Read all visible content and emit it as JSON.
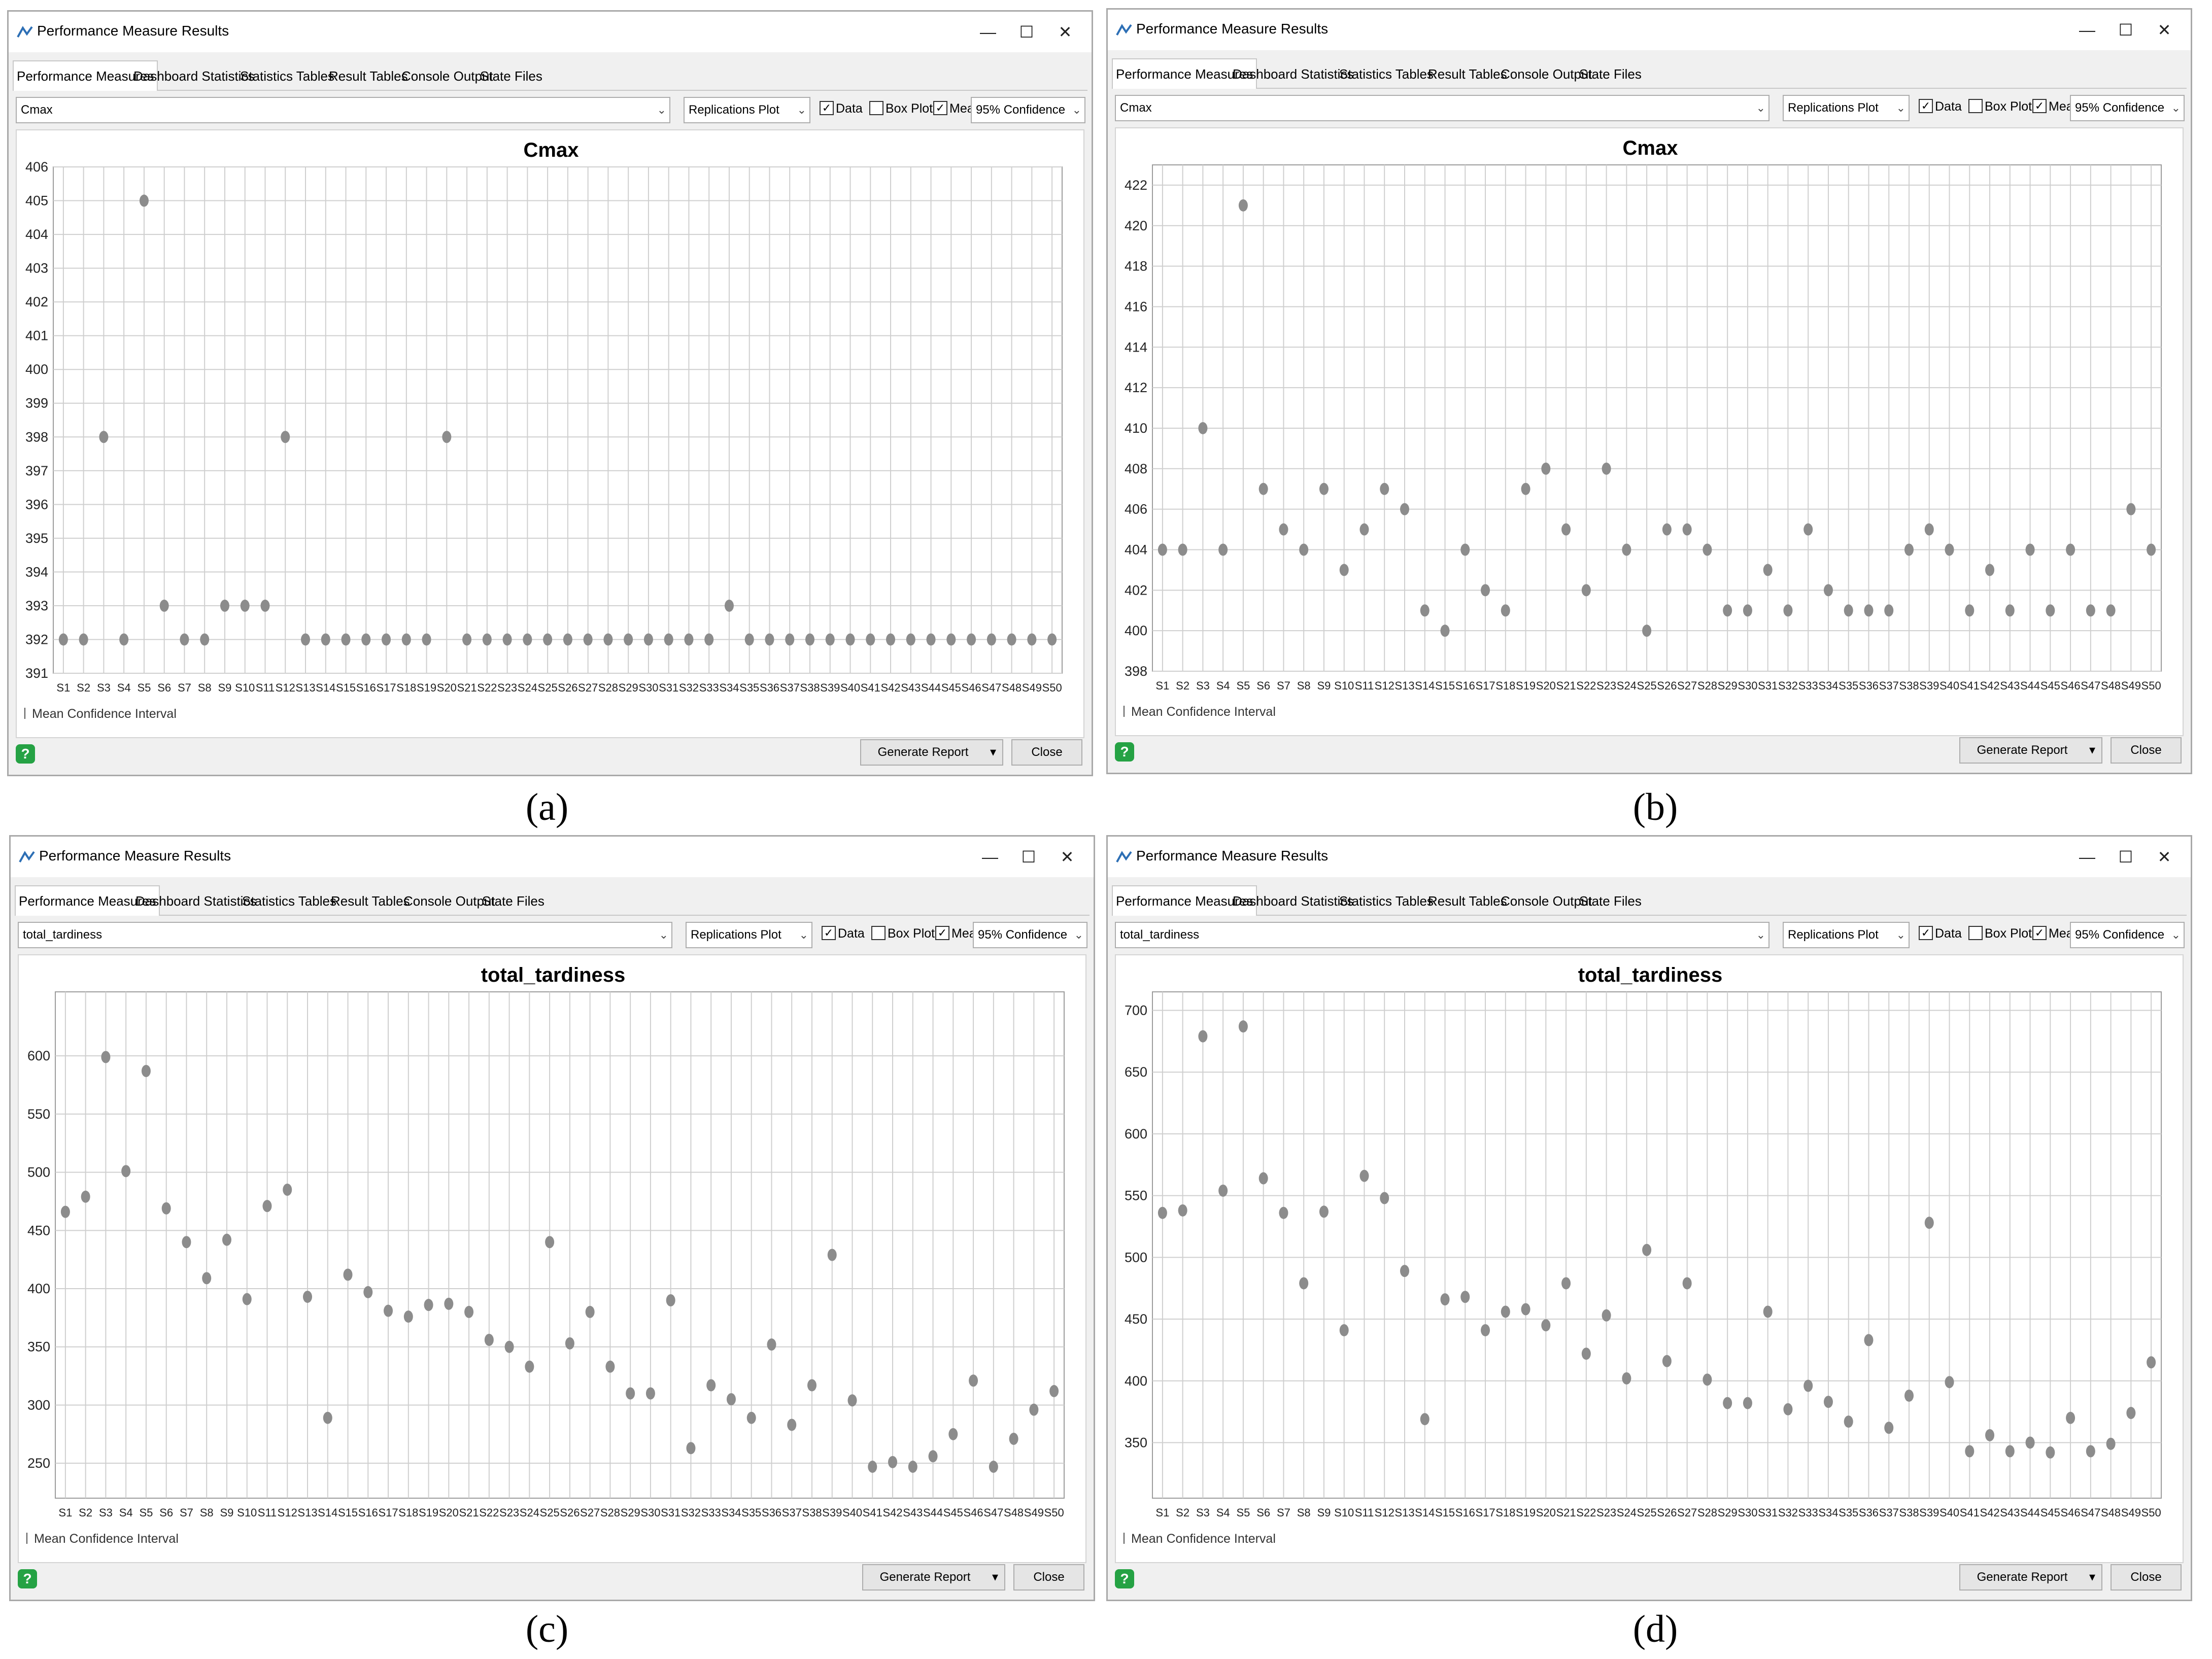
{
  "window_title": "Performance Measure Results",
  "tabs": [
    "Performance Measures",
    "Dashboard Statistics",
    "Statistics Tables",
    "Result Tables",
    "Console Output",
    "State Files"
  ],
  "plot_type": "Replications Plot",
  "data_label": "Data",
  "boxplot_label": "Box Plot",
  "mean_label": "Mean",
  "confidence": "95% Confidence",
  "legend_text": "Mean Confidence Interval",
  "generate_report": "Generate Report",
  "close_label": "Close",
  "help_glyph": "?",
  "colors": {
    "point": "#8c8c8c",
    "grid": "#cfcfcf",
    "help": "#25a244"
  },
  "panels": [
    {
      "id": "a",
      "caption": "(a)",
      "measure": "Cmax"
    },
    {
      "id": "b",
      "caption": "(b)",
      "measure": "Cmax"
    },
    {
      "id": "c",
      "caption": "(c)",
      "measure": "total_tardiness"
    },
    {
      "id": "d",
      "caption": "(d)",
      "measure": "total_tardiness"
    }
  ],
  "chart_data": [
    {
      "type": "scatter",
      "title": "Cmax",
      "xlabel": "",
      "ylabel": "",
      "ylim": [
        391,
        406
      ],
      "yticks": [
        391,
        392,
        393,
        394,
        395,
        396,
        397,
        398,
        399,
        400,
        401,
        402,
        403,
        404,
        405,
        406
      ],
      "categories": [
        "S1",
        "S2",
        "S3",
        "S4",
        "S5",
        "S6",
        "S7",
        "S8",
        "S9",
        "S10",
        "S11",
        "S12",
        "S13",
        "S14",
        "S15",
        "S16",
        "S17",
        "S18",
        "S19",
        "S20",
        "S21",
        "S22",
        "S23",
        "S24",
        "S25",
        "S26",
        "S27",
        "S28",
        "S29",
        "S30",
        "S31",
        "S32",
        "S33",
        "S34",
        "S35",
        "S36",
        "S37",
        "S38",
        "S39",
        "S40",
        "S41",
        "S42",
        "S43",
        "S44",
        "S45",
        "S46",
        "S47",
        "S48",
        "S49",
        "S50"
      ],
      "values": [
        392,
        392,
        398,
        392,
        405,
        393,
        392,
        392,
        393,
        393,
        393,
        398,
        392,
        392,
        392,
        392,
        392,
        392,
        392,
        398,
        392,
        392,
        392,
        392,
        392,
        392,
        392,
        392,
        392,
        392,
        392,
        392,
        392,
        393,
        392,
        392,
        392,
        392,
        392,
        392,
        392,
        392,
        392,
        392,
        392,
        392,
        392,
        392,
        392,
        392
      ],
      "grid": true
    },
    {
      "type": "scatter",
      "title": "Cmax",
      "xlabel": "",
      "ylabel": "",
      "ylim": [
        398,
        423
      ],
      "yticks": [
        398,
        400,
        402,
        404,
        406,
        408,
        410,
        412,
        414,
        416,
        418,
        420,
        422
      ],
      "categories": [
        "S1",
        "S2",
        "S3",
        "S4",
        "S5",
        "S6",
        "S7",
        "S8",
        "S9",
        "S10",
        "S11",
        "S12",
        "S13",
        "S14",
        "S15",
        "S16",
        "S17",
        "S18",
        "S19",
        "S20",
        "S21",
        "S22",
        "S23",
        "S24",
        "S25",
        "S26",
        "S27",
        "S28",
        "S29",
        "S30",
        "S31",
        "S32",
        "S33",
        "S34",
        "S35",
        "S36",
        "S37",
        "S38",
        "S39",
        "S40",
        "S41",
        "S42",
        "S43",
        "S44",
        "S45",
        "S46",
        "S47",
        "S48",
        "S49",
        "S50"
      ],
      "values": [
        404,
        404,
        410,
        404,
        421,
        407,
        405,
        404,
        407,
        403,
        405,
        407,
        406,
        401,
        400,
        404,
        402,
        401,
        407,
        408,
        405,
        402,
        408,
        404,
        400,
        405,
        405,
        404,
        401,
        401,
        403,
        401,
        405,
        402,
        401,
        401,
        401,
        404,
        405,
        404,
        401,
        403,
        401,
        404,
        401,
        404,
        401,
        401,
        406,
        404
      ],
      "grid": true
    },
    {
      "type": "scatter",
      "title": "total_tardiness",
      "xlabel": "",
      "ylabel": "",
      "ylim": [
        220,
        655
      ],
      "yticks": [
        250,
        300,
        350,
        400,
        450,
        500,
        550,
        600
      ],
      "categories": [
        "S1",
        "S2",
        "S3",
        "S4",
        "S5",
        "S6",
        "S7",
        "S8",
        "S9",
        "S10",
        "S11",
        "S12",
        "S13",
        "S14",
        "S15",
        "S16",
        "S17",
        "S18",
        "S19",
        "S20",
        "S21",
        "S22",
        "S23",
        "S24",
        "S25",
        "S26",
        "S27",
        "S28",
        "S29",
        "S30",
        "S31",
        "S32",
        "S33",
        "S34",
        "S35",
        "S36",
        "S37",
        "S38",
        "S39",
        "S40",
        "S41",
        "S42",
        "S43",
        "S44",
        "S45",
        "S46",
        "S47",
        "S48",
        "S49",
        "S50"
      ],
      "values": [
        466,
        479,
        599,
        501,
        587,
        469,
        440,
        409,
        442,
        391,
        471,
        485,
        393,
        289,
        412,
        397,
        381,
        376,
        386,
        387,
        380,
        356,
        350,
        333,
        440,
        353,
        380,
        333,
        310,
        310,
        390,
        263,
        317,
        305,
        289,
        352,
        283,
        317,
        429,
        304,
        247,
        251,
        247,
        256,
        275,
        321,
        247,
        271,
        296,
        312
      ],
      "grid": true
    },
    {
      "type": "scatter",
      "title": "total_tardiness",
      "xlabel": "",
      "ylabel": "",
      "ylim": [
        305,
        715
      ],
      "yticks": [
        350,
        400,
        450,
        500,
        550,
        600,
        650,
        700
      ],
      "categories": [
        "S1",
        "S2",
        "S3",
        "S4",
        "S5",
        "S6",
        "S7",
        "S8",
        "S9",
        "S10",
        "S11",
        "S12",
        "S13",
        "S14",
        "S15",
        "S16",
        "S17",
        "S18",
        "S19",
        "S20",
        "S21",
        "S22",
        "S23",
        "S24",
        "S25",
        "S26",
        "S27",
        "S28",
        "S29",
        "S30",
        "S31",
        "S32",
        "S33",
        "S34",
        "S35",
        "S36",
        "S37",
        "S38",
        "S39",
        "S40",
        "S41",
        "S42",
        "S43",
        "S44",
        "S45",
        "S46",
        "S47",
        "S48",
        "S49",
        "S50"
      ],
      "values": [
        536,
        538,
        679,
        554,
        687,
        564,
        536,
        479,
        537,
        441,
        566,
        548,
        489,
        369,
        466,
        468,
        441,
        456,
        458,
        445,
        479,
        422,
        453,
        402,
        506,
        416,
        479,
        401,
        382,
        382,
        456,
        377,
        396,
        383,
        367,
        433,
        362,
        388,
        528,
        399,
        343,
        356,
        343,
        350,
        342,
        370,
        343,
        349,
        374,
        415
      ],
      "grid": true
    }
  ]
}
